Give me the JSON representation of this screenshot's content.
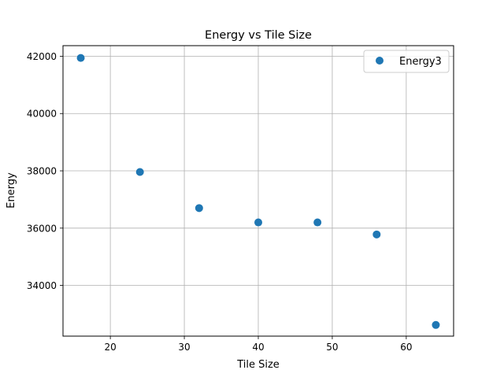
{
  "chart_data": {
    "type": "scatter",
    "title": "Energy vs Tile Size",
    "xlabel": "Tile Size",
    "ylabel": "Energy",
    "xlim": [
      13.6,
      66.4
    ],
    "ylim": [
      32230,
      42370
    ],
    "xticks": [
      20,
      30,
      40,
      50,
      60
    ],
    "yticks": [
      34000,
      36000,
      38000,
      40000,
      42000
    ],
    "grid": true,
    "legend_position": "top-right",
    "series": [
      {
        "name": "Energy3",
        "color": "#1f77b4",
        "points": [
          {
            "x": 16,
            "y": 41940
          },
          {
            "x": 24,
            "y": 37960
          },
          {
            "x": 32,
            "y": 36700
          },
          {
            "x": 40,
            "y": 36200
          },
          {
            "x": 48,
            "y": 36200
          },
          {
            "x": 56,
            "y": 35780
          },
          {
            "x": 64,
            "y": 32620
          }
        ]
      }
    ]
  }
}
